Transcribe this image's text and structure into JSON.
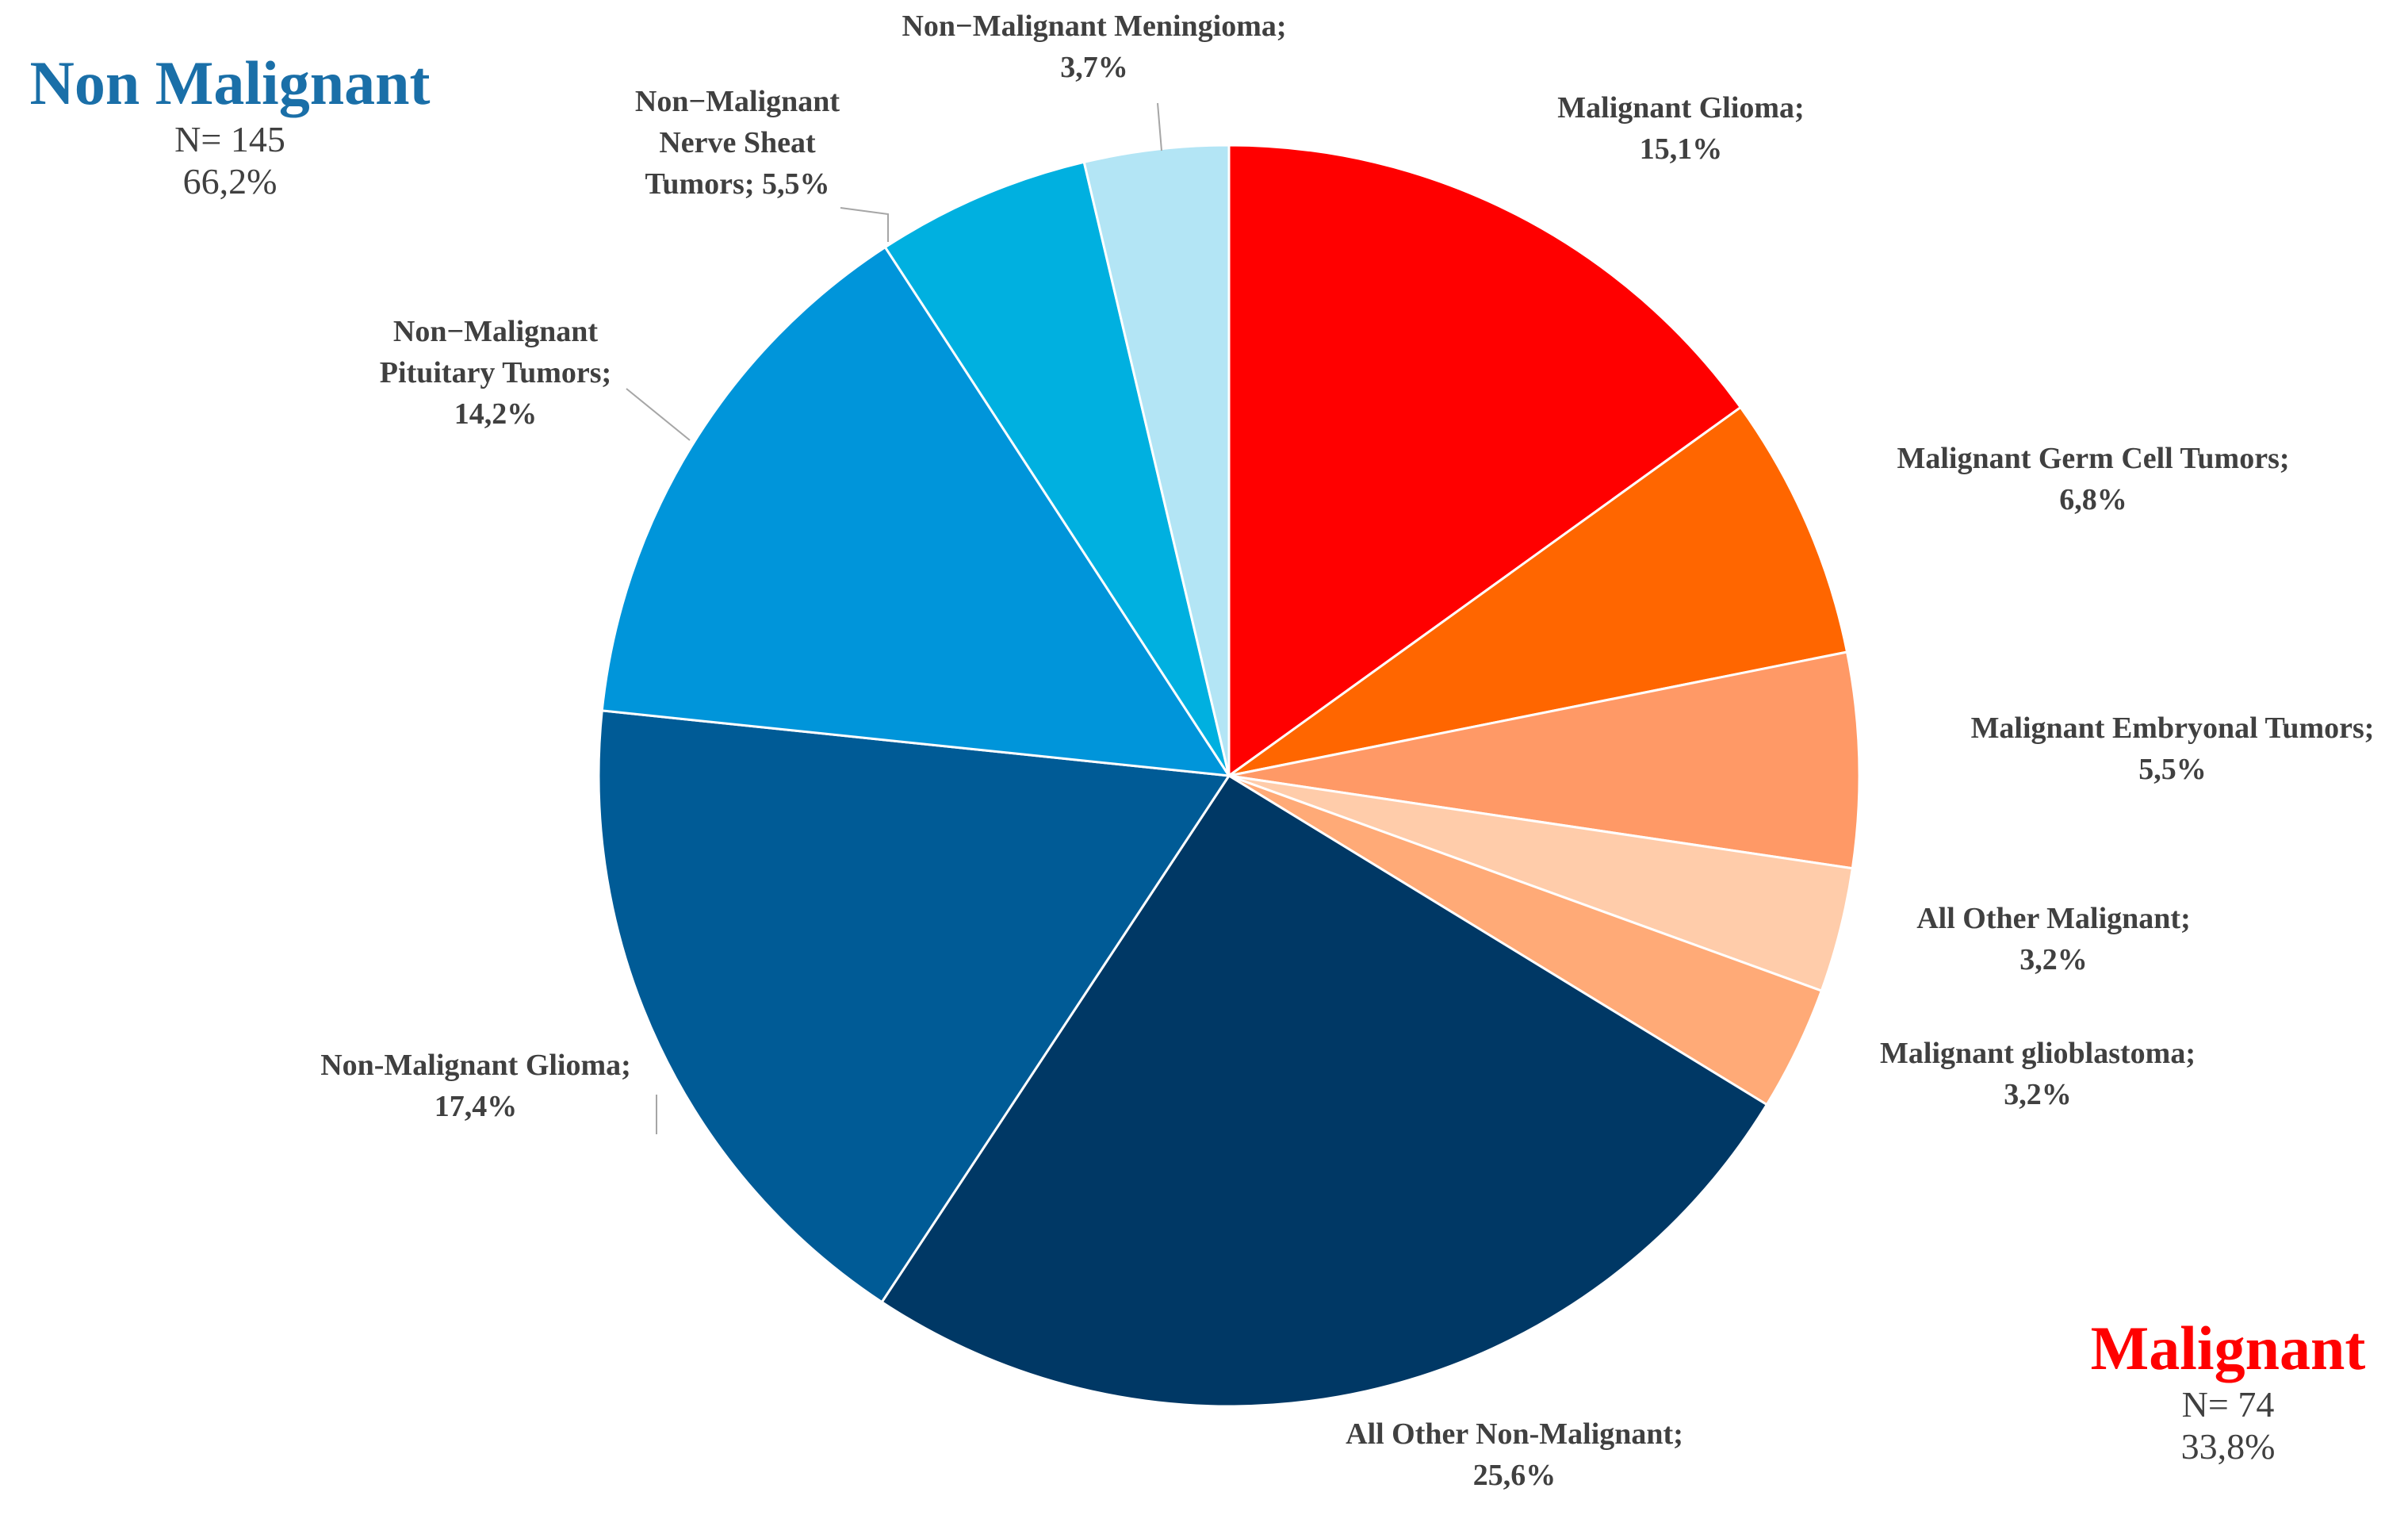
{
  "chart_data": {
    "type": "pie",
    "start_angle_deg": 0,
    "direction": "clockwise",
    "slices": [
      {
        "label": "Malignant Glioma;",
        "value_label": "15,1%",
        "value": 15.1,
        "color": "#ff0000"
      },
      {
        "label": "Malignant Germ Cell Tumors;",
        "value_label": "6,8%",
        "value": 6.8,
        "color": "#ff6600"
      },
      {
        "label": "Malignant Embryonal Tumors;",
        "value_label": "5,5%",
        "value": 5.5,
        "color": "#ff9966"
      },
      {
        "label": "All Other Malignant;",
        "value_label": "3,2%",
        "value": 3.2,
        "color": "#ffccaa"
      },
      {
        "label": "Malignant glioblastoma;",
        "value_label": "3,2%",
        "value": 3.2,
        "color": "#ffaa77"
      },
      {
        "label": "All Other Non-Malignant;",
        "value_label": "25,6%",
        "value": 25.6,
        "color": "#003865"
      },
      {
        "label": "Non-Malignant Glioma;",
        "value_label": "17,4%",
        "value": 17.4,
        "color": "#005b96"
      },
      {
        "label": "Non−Malignant Pituitary Tumors;",
        "value_label": "14,2%",
        "value": 14.2,
        "color": "#0095da"
      },
      {
        "label": "Non−Malignant Nerve Sheath Tumors; 5,5%",
        "value_label": "",
        "value": 5.5,
        "color": "#00b0e0"
      },
      {
        "label": "Non−Malignant Meningioma;",
        "value_label": "3,7%",
        "value": 3.7,
        "color": "#b3e5f5"
      }
    ]
  },
  "groups": {
    "non_malignant": {
      "title": "Non Malignant",
      "n": "N= 145",
      "pct": "66,2%",
      "color": "#1a6fa8"
    },
    "malignant": {
      "title": "Malignant",
      "n": "N= 74",
      "pct": "33,8%",
      "color": "#ff0000"
    }
  }
}
